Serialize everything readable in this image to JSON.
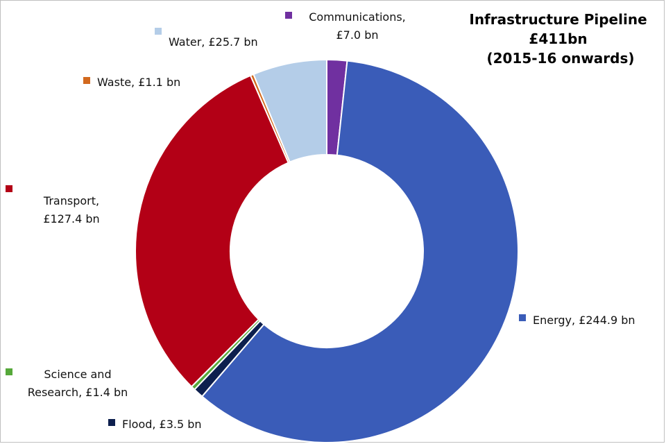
{
  "chart_data": {
    "type": "pie",
    "variant": "donut",
    "title_lines": [
      "Infrastructure Pipeline",
      "£411bn",
      "(2015-16 onwards)"
    ],
    "slices": [
      {
        "name": "Communications",
        "value": 7.0,
        "color": "#7030a0",
        "label_lines": [
          "Communications,",
          "£7.0 bn"
        ]
      },
      {
        "name": "Energy",
        "value": 244.9,
        "color": "#3a5cb8",
        "label_lines": [
          "Energy, £244.9 bn"
        ]
      },
      {
        "name": "Flood",
        "value": 3.5,
        "color": "#0d1f4e",
        "label_lines": [
          "Flood, £3.5 bn"
        ]
      },
      {
        "name": "Science and Research",
        "value": 1.4,
        "color": "#56a83a",
        "label_lines": [
          "Science and",
          "Research, £1.4 bn"
        ]
      },
      {
        "name": "Transport",
        "value": 127.4,
        "color": "#b30016",
        "label_lines": [
          "Transport,",
          "£127.4 bn"
        ]
      },
      {
        "name": "Waste",
        "value": 1.1,
        "color": "#d2691e",
        "label_lines": [
          "Waste, £1.1 bn"
        ]
      },
      {
        "name": "Water",
        "value": 25.7,
        "color": "#b4cde8",
        "label_lines": [
          "Water, £25.7 bn"
        ]
      }
    ],
    "start_angle": "top (12 o'clock)",
    "direction": "clockwise",
    "legend": "none (direct labels)"
  }
}
